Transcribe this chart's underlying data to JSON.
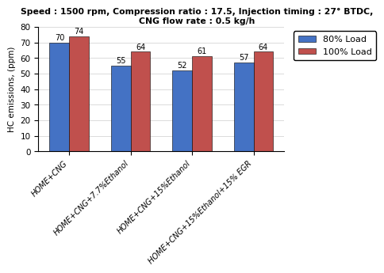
{
  "title_line1": "Speed : 1500 rpm, Compression ratio : 17.5, Injection timing : 27° BTDC,",
  "title_line2": "CNG flow rate : 0.5 kg/h",
  "categories": [
    "HOME+CNG",
    "HOME+CNG+7.7%Ethanol",
    "HOME+CNG+15%Ethanol",
    "HOME+CNG+15%Ethanol+15% EGR"
  ],
  "series": [
    {
      "label": "80% Load",
      "values": [
        70,
        55,
        52,
        57
      ],
      "color": "#4472C4"
    },
    {
      "label": "100% Load",
      "values": [
        74,
        64,
        61,
        64
      ],
      "color": "#C0504D"
    }
  ],
  "ylabel": "HC emissions, (ppm)",
  "ylim": [
    0,
    80
  ],
  "yticks": [
    0,
    10,
    20,
    30,
    40,
    50,
    60,
    70,
    80
  ],
  "bar_width": 0.32,
  "title_fontsize": 7.8,
  "ylabel_fontsize": 7.5,
  "tick_fontsize": 7.5,
  "value_fontsize": 7.0,
  "xtick_fontsize": 7.0,
  "legend_fontsize": 8.0,
  "background_color": "#ffffff"
}
